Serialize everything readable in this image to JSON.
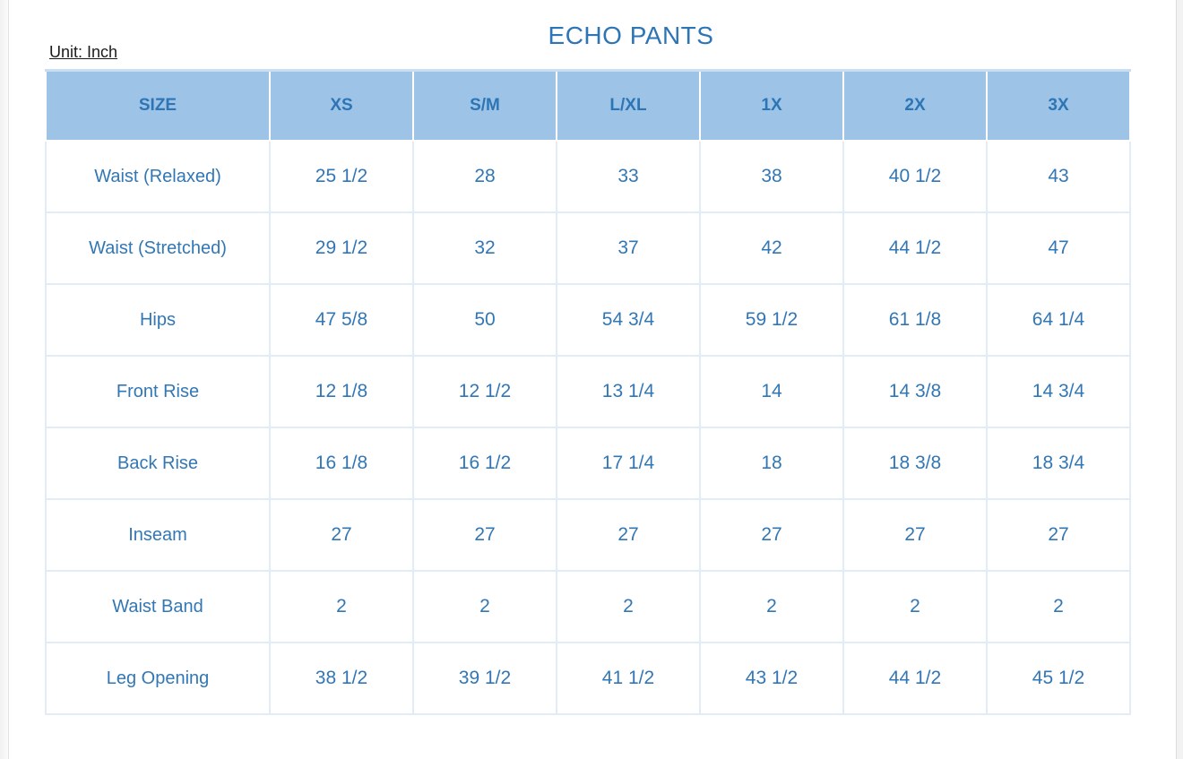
{
  "page": {
    "title": "ECHO PANTS",
    "unit_label": "Unit: Inch"
  },
  "table": {
    "columns": [
      "SIZE",
      "XS",
      "S/M",
      "L/XL",
      "1X",
      "2X",
      "3X"
    ],
    "rows": [
      {
        "label": "Waist (Relaxed)",
        "values": [
          "25 1/2",
          "28",
          "33",
          "38",
          "40 1/2",
          "43"
        ]
      },
      {
        "label": "Waist (Stretched)",
        "values": [
          "29 1/2",
          "32",
          "37",
          "42",
          "44 1/2",
          "47"
        ]
      },
      {
        "label": "Hips",
        "values": [
          "47 5/8",
          "50",
          "54 3/4",
          "59 1/2",
          "61 1/8",
          "64 1/4"
        ]
      },
      {
        "label": "Front Rise",
        "values": [
          "12 1/8",
          "12 1/2",
          "13 1/4",
          "14",
          "14 3/8",
          "14 3/4"
        ]
      },
      {
        "label": "Back Rise",
        "values": [
          "16 1/8",
          "16 1/2",
          "17 1/4",
          "18",
          "18 3/8",
          "18 3/4"
        ]
      },
      {
        "label": "Inseam",
        "values": [
          "27",
          "27",
          "27",
          "27",
          "27",
          "27"
        ]
      },
      {
        "label": "Waist Band",
        "values": [
          "2",
          "2",
          "2",
          "2",
          "2",
          "2"
        ]
      },
      {
        "label": "Leg Opening",
        "values": [
          "38 1/2",
          "39 1/2",
          "41 1/2",
          "43 1/2",
          "44 1/2",
          "45 1/2"
        ]
      }
    ]
  },
  "colors": {
    "accent_text": "#2E75B6",
    "header_fill": "#9DC3E6",
    "grid_line": "#e2ecf7",
    "unit_text": "#1a1a1a"
  }
}
